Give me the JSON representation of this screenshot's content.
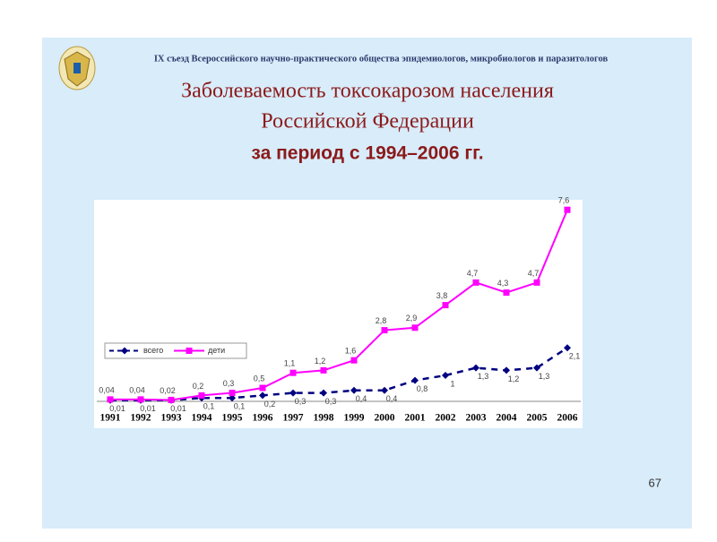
{
  "slide": {
    "header": "IX съезд Всероссийского научно-практического общества эпидемиологов, микробиологов и паразитологов",
    "title": [
      "Заболеваемость токсокарозом населения",
      "Российской Федерации",
      "за период с 1994–2006 гг."
    ],
    "page_number": "67"
  },
  "chart_data": {
    "type": "line",
    "categories": [
      "1991",
      "1992",
      "1993",
      "1994",
      "1995",
      "1996",
      "1997",
      "1998",
      "1999",
      "2000",
      "2001",
      "2002",
      "2003",
      "2004",
      "2005",
      "2006"
    ],
    "ylim": [
      0,
      8
    ],
    "legend": "left",
    "series": [
      {
        "name": "всего",
        "color": "#000080",
        "dashed": true,
        "marker": "diamond",
        "values": [
          0.01,
          0.01,
          0.01,
          0.1,
          0.1,
          0.2,
          0.3,
          0.3,
          0.4,
          0.4,
          0.8,
          1,
          1.3,
          1.2,
          1.3,
          2.1
        ],
        "value_labels": [
          "0,01",
          "0,01",
          "0,01",
          "0,1",
          "0,1",
          "0,2",
          "0,3",
          "0,3",
          "0,4",
          "0,4",
          "0,8",
          "1",
          "1,3",
          "1,2",
          "1,3",
          "2,1"
        ]
      },
      {
        "name": "дети",
        "color": "#ff00ff",
        "dashed": false,
        "marker": "square",
        "values": [
          0.04,
          0.04,
          0.02,
          0.2,
          0.3,
          0.5,
          1.1,
          1.2,
          1.6,
          2.8,
          2.9,
          3.8,
          4.7,
          4.3,
          4.7,
          7.6
        ],
        "value_labels": [
          "0,04",
          "0,04",
          "0,02",
          "0,2",
          "0,3",
          "0,5",
          "1,1",
          "1,2",
          "1,6",
          "2,8",
          "2,9",
          "3,8",
          "4,7",
          "4,3",
          "4,7",
          "7,6"
        ]
      }
    ]
  }
}
